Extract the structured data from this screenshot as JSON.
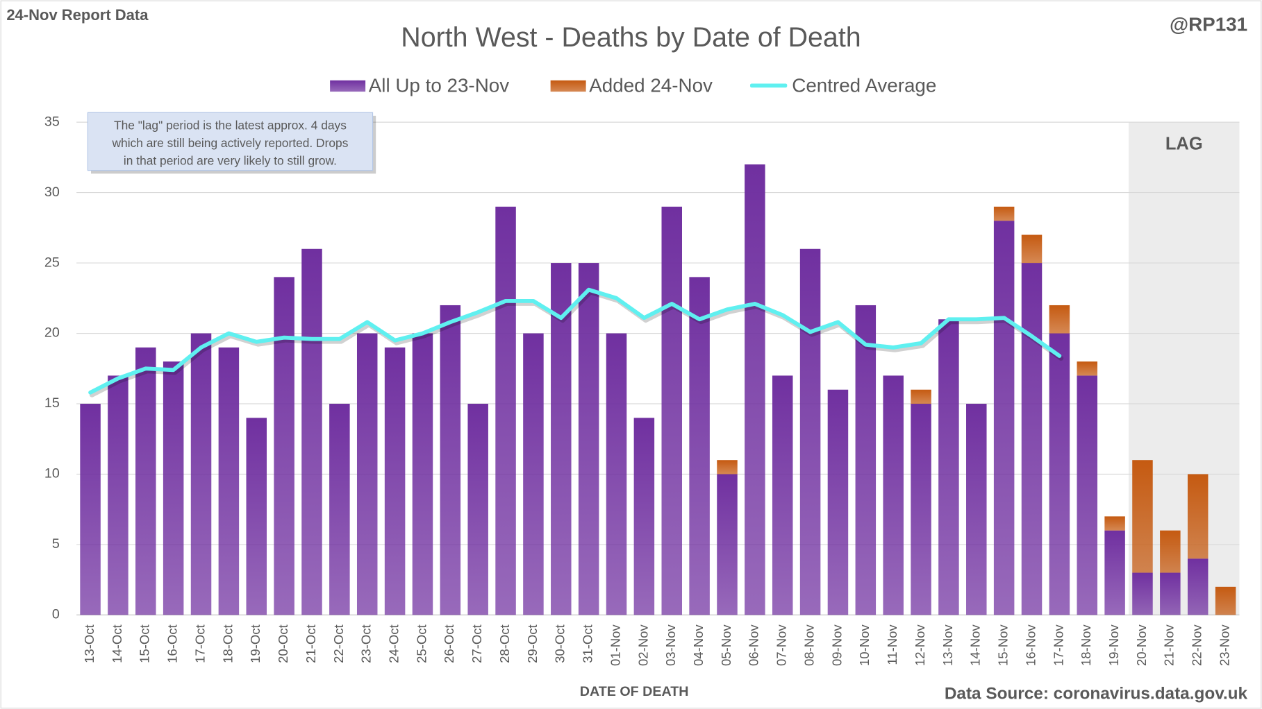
{
  "chart_data": {
    "type": "bar",
    "stacked": true,
    "header_left": "24-Nov Report Data",
    "header_right": "@RP131",
    "title": "North West - Deaths by Date of Death",
    "x_label": "DATE OF DEATH",
    "source": "Data Source: coronavirus.data.gov.uk",
    "annotation_lines": [
      "The \"lag\" period is the latest approx. 4 days",
      "which are still being actively reported. Drops",
      "in that period are very likely to still grow."
    ],
    "lag_label": "LAG",
    "lag_from": "20-Nov",
    "categories": [
      "13-Oct",
      "14-Oct",
      "15-Oct",
      "16-Oct",
      "17-Oct",
      "18-Oct",
      "19-Oct",
      "20-Oct",
      "21-Oct",
      "22-Oct",
      "23-Oct",
      "24-Oct",
      "25-Oct",
      "26-Oct",
      "27-Oct",
      "28-Oct",
      "29-Oct",
      "30-Oct",
      "31-Oct",
      "01-Nov",
      "02-Nov",
      "03-Nov",
      "04-Nov",
      "05-Nov",
      "06-Nov",
      "07-Nov",
      "08-Nov",
      "09-Nov",
      "10-Nov",
      "11-Nov",
      "12-Nov",
      "13-Nov",
      "14-Nov",
      "15-Nov",
      "16-Nov",
      "17-Nov",
      "18-Nov",
      "19-Nov",
      "20-Nov",
      "21-Nov",
      "22-Nov",
      "23-Nov"
    ],
    "series": [
      {
        "name": "All Up to 23-Nov",
        "color": "#7030a0",
        "kind": "bar",
        "values": [
          15,
          17,
          19,
          18,
          20,
          19,
          14,
          24,
          26,
          15,
          20,
          19,
          20,
          22,
          15,
          29,
          20,
          25,
          25,
          20,
          14,
          29,
          24,
          10,
          32,
          17,
          26,
          16,
          22,
          17,
          15,
          21,
          15,
          28,
          25,
          20,
          17,
          6,
          3,
          3,
          4,
          0
        ]
      },
      {
        "name": "Added 24-Nov",
        "color": "#c55a11",
        "kind": "bar",
        "values": [
          0,
          0,
          0,
          0,
          0,
          0,
          0,
          0,
          0,
          0,
          0,
          0,
          0,
          0,
          0,
          0,
          0,
          0,
          0,
          0,
          0,
          0,
          0,
          1,
          0,
          0,
          0,
          0,
          0,
          0,
          1,
          0,
          0,
          1,
          2,
          2,
          1,
          1,
          8,
          3,
          6,
          2
        ]
      },
      {
        "name": "Centred Average",
        "color": "#5ff0f0",
        "kind": "line",
        "values": [
          15.8,
          16.8,
          17.5,
          17.4,
          19.0,
          20.0,
          19.4,
          19.7,
          19.6,
          19.6,
          20.8,
          19.5,
          20.0,
          20.8,
          21.5,
          22.3,
          22.3,
          21.1,
          23.1,
          22.5,
          21.1,
          22.1,
          21.0,
          21.7,
          22.1,
          21.3,
          20.1,
          20.8,
          19.2,
          19.0,
          19.3,
          21.0,
          21.0,
          21.1,
          19.8,
          18.4,
          null,
          null,
          null,
          null,
          null,
          null
        ]
      }
    ],
    "ylim": [
      0,
      35
    ],
    "yticks": [
      0,
      5,
      10,
      15,
      20,
      25,
      30,
      35
    ],
    "grid": true
  }
}
